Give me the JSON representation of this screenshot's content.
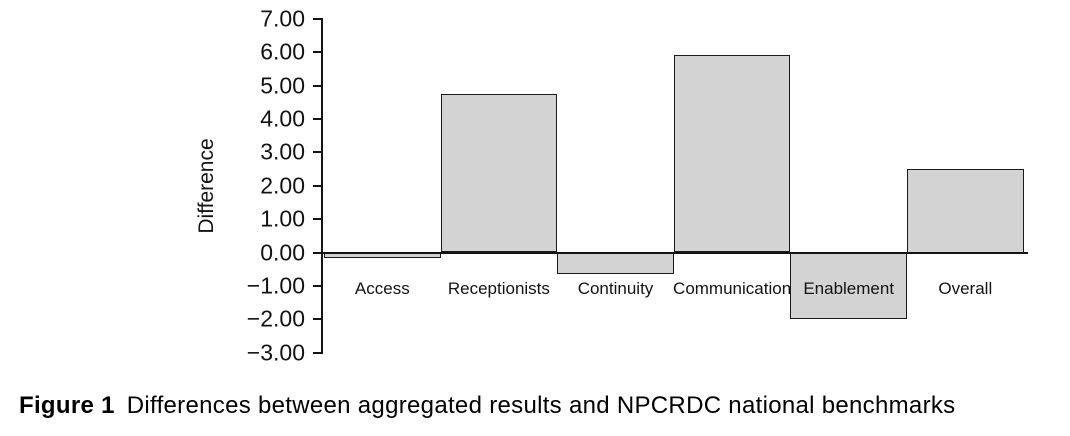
{
  "chart_data": {
    "type": "bar",
    "categories": [
      "Access",
      "Receptionists",
      "Continuity",
      "Communication",
      "Enablement",
      "Overall"
    ],
    "values": [
      -0.15,
      4.75,
      -0.65,
      5.9,
      -2.0,
      2.5
    ],
    "title": "",
    "xlabel": "",
    "ylabel": "Difference",
    "ylim": [
      -3,
      7
    ],
    "ytick_step": 1,
    "ytick_labels": [
      "7.00",
      "6.00",
      "5.00",
      "4.00",
      "3.00",
      "2.00",
      "1.00",
      "0.00",
      "−1.00",
      "−2.00",
      "−3.00"
    ],
    "grid": false,
    "legend": "none",
    "bar_color": "#d3d3d3",
    "bar_border_color": "#1a1a1a"
  },
  "caption": {
    "label": "Figure 1",
    "text": "Differences between aggregated results and NPCRDC national benchmarks"
  }
}
